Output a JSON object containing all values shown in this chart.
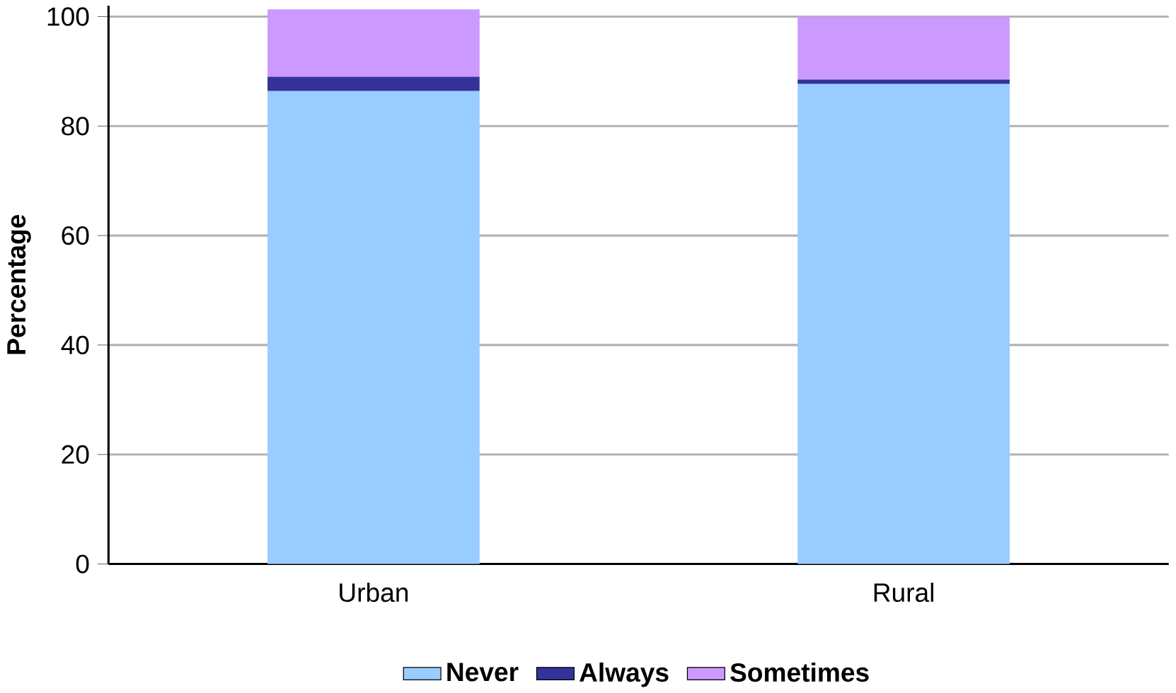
{
  "chart_data": {
    "type": "bar",
    "stacked": true,
    "ylabel": "Percentage",
    "categories": [
      "Urban",
      "Rural"
    ],
    "series": [
      {
        "name": "Never",
        "color": "#99ccff",
        "values": [
          86.4,
          87.7
        ]
      },
      {
        "name": "Always",
        "color": "#333399",
        "values": [
          2.6,
          0.8
        ]
      },
      {
        "name": "Sometimes",
        "color": "#cc99ff",
        "values": [
          12.3,
          11.5
        ]
      }
    ],
    "ylim": [
      0,
      102
    ],
    "yticks": [
      0,
      20,
      40,
      60,
      80,
      100
    ],
    "grid": "y",
    "legend": "bottom"
  }
}
